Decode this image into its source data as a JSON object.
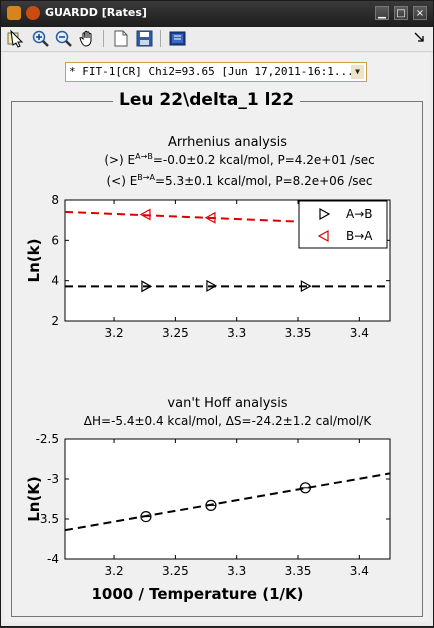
{
  "window": {
    "title": "GUARDD [Rates]",
    "controls": [
      "minimize-icon",
      "maximize-icon",
      "close-icon"
    ]
  },
  "toolbar": {
    "buttons": [
      "data-cursor-icon",
      "zoom-in-icon",
      "zoom-out-icon",
      "pan-icon",
      "new-figure-icon",
      "save-icon",
      "plot-tools-icon"
    ]
  },
  "fit_selector": {
    "value": "* FIT-1[CR] Chi2=93.65 [Jun 17,2011-16:1..."
  },
  "panel": {
    "title": "Leu 22\\delta_1 l22"
  },
  "colors": {
    "a_to_b": "#000000",
    "b_to_a": "#dd0000"
  },
  "chart_data": [
    {
      "type": "scatter",
      "title": "Arrhenius analysis",
      "subtitle1": "(>) E",
      "subtitle1_sup": "A→B",
      "subtitle1_rest": "=-0.0±0.2 kcal/mol, P=4.2e+01 /sec",
      "subtitle2": "(<) E",
      "subtitle2_sup": "B→A",
      "subtitle2_rest": "=5.3±0.1 kcal/mol, P=8.2e+06 /sec",
      "xlabel": "",
      "ylabel": "Ln(k)",
      "xlim": [
        3.16,
        3.425
      ],
      "ylim": [
        2,
        8
      ],
      "xticks": [
        "3.2",
        "3.25",
        "3.3",
        "3.35",
        "3.4"
      ],
      "yticks": [
        "2",
        "4",
        "6",
        "8"
      ],
      "legend_position": "top-right",
      "series": [
        {
          "name": "A→B",
          "marker": "triangle-right",
          "x": [
            3.226,
            3.279,
            3.356
          ],
          "y": [
            3.72,
            3.74,
            3.73
          ],
          "fit": [
            3.72,
            3.72
          ]
        },
        {
          "name": "B→A",
          "marker": "triangle-left",
          "x": [
            3.226,
            3.279
          ],
          "y": [
            7.28,
            7.12
          ],
          "fit": [
            7.41,
            6.74
          ]
        }
      ]
    },
    {
      "type": "scatter",
      "title": "van't Hoff analysis",
      "subtitle1": "ΔH=-5.4±0.4 kcal/mol, ΔS=-24.2±1.2 cal/mol/K",
      "xlabel": "1000 / Temperature (1/K)",
      "ylabel": "Ln(K)",
      "xlim": [
        3.16,
        3.425
      ],
      "ylim": [
        -4,
        -2.5
      ],
      "xticks": [
        "3.2",
        "3.25",
        "3.3",
        "3.35",
        "3.4"
      ],
      "yticks": [
        "-2.5",
        "-3",
        "-3.5",
        "-4"
      ],
      "series": [
        {
          "marker": "circle",
          "x": [
            3.226,
            3.279,
            3.356
          ],
          "y": [
            -3.47,
            -3.33,
            -3.11
          ],
          "fit": [
            -3.64,
            -2.93
          ]
        }
      ]
    }
  ]
}
